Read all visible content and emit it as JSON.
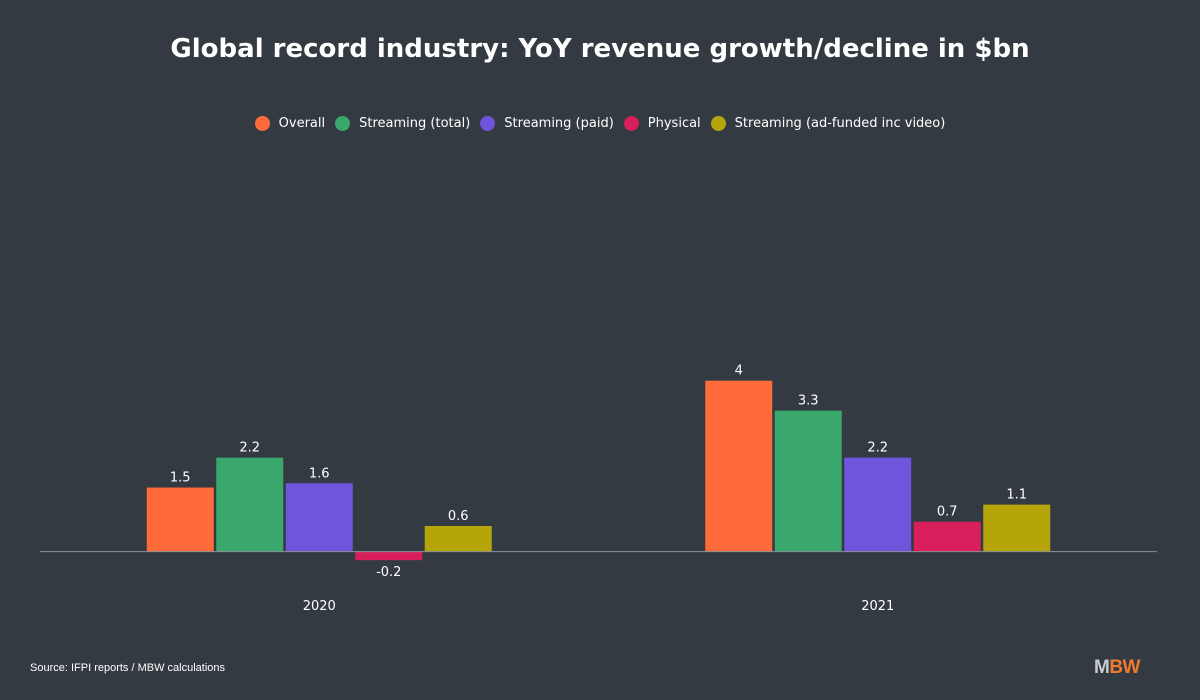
{
  "chart_data": {
    "type": "bar",
    "title": "Global record industry: YoY revenue growth/decline in $bn",
    "categories": [
      "2020",
      "2021"
    ],
    "series": [
      {
        "name": "Overall",
        "color": "#ff6b3b",
        "values": [
          1.5,
          4
        ]
      },
      {
        "name": "Streaming (total)",
        "color": "#3aa76d",
        "values": [
          2.2,
          3.3
        ]
      },
      {
        "name": "Streaming (paid)",
        "color": "#6f55dc",
        "values": [
          1.6,
          2.2
        ]
      },
      {
        "name": "Physical",
        "color": "#d81f5b",
        "values": [
          -0.2,
          0.7
        ]
      },
      {
        "name": "Streaming (ad-funded inc video)",
        "color": "#b6a50a",
        "values": [
          0.6,
          1.1
        ]
      }
    ],
    "data_labels": [
      [
        "1.5",
        "4"
      ],
      [
        "2.2",
        "3.3"
      ],
      [
        "1.6",
        "2.2"
      ],
      [
        "-0.2",
        "0.7"
      ],
      [
        "0.6",
        "1.1"
      ]
    ],
    "ylim": [
      -0.5,
      9
    ],
    "grid": false,
    "legend_position": "top-center",
    "xlabel": "",
    "ylabel": ""
  },
  "source": "Source: IFPI reports / MBW calculations",
  "brand": {
    "part1": "M",
    "part2": "BW"
  }
}
